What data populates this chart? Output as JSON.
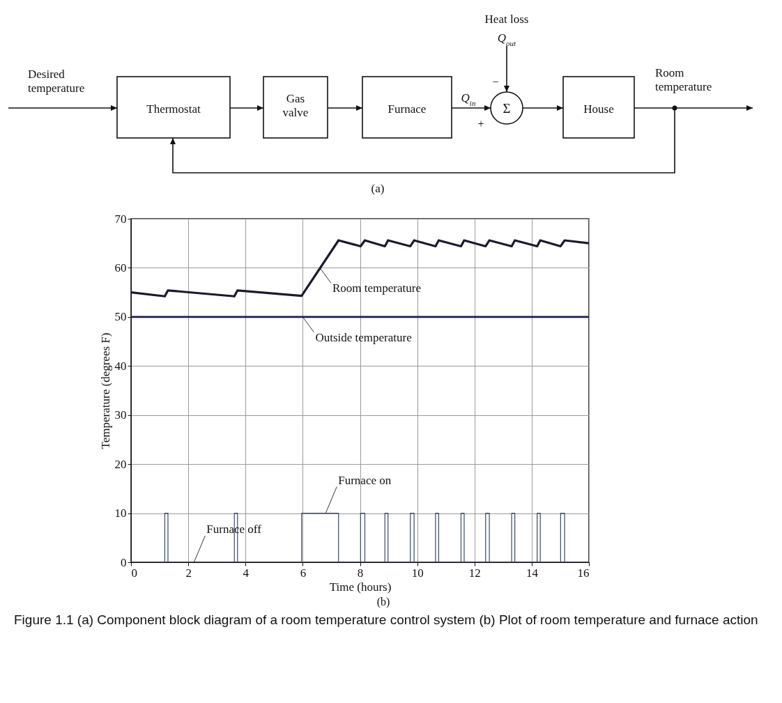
{
  "chart_data": [
    {
      "type": "other",
      "annotations": [
        "Desired temperature",
        "Thermostat",
        "Gas valve",
        "Furnace",
        "Q$_{in}$",
        "+",
        "Σ",
        "−",
        "Heat loss",
        "Q$_{out}$",
        "House",
        "Room temperature",
        "(a)"
      ]
    },
    {
      "type": "line",
      "xlabel": "Time (hours)",
      "ylabel": "Temperature (degrees F)",
      "xlim": [
        0,
        16
      ],
      "xticks": [
        0,
        2,
        4,
        6,
        8,
        10,
        12,
        14,
        16
      ],
      "ylim": [
        0,
        70
      ],
      "yticks": [
        0,
        10,
        20,
        30,
        40,
        50,
        60,
        70
      ],
      "grid": true,
      "series": [
        {
          "color": "#1a1a2e",
          "x": [
            0,
            1.18,
            1.29,
            3.61,
            3.72,
            5.96,
            7.25,
            8.02,
            8.17,
            8.87,
            8.98,
            9.76,
            9.89,
            10.64,
            10.75,
            11.53,
            11.64,
            12.39,
            12.52,
            13.3,
            13.41,
            14.19,
            14.3,
            15.01,
            15.15,
            16
          ],
          "values": [
            55,
            54.2,
            55.4,
            54.2,
            55.4,
            54.3,
            65.6,
            64.4,
            65.6,
            64.4,
            65.6,
            64.4,
            65.6,
            64.4,
            65.6,
            64.4,
            65.6,
            64.4,
            65.6,
            64.4,
            65.6,
            64.4,
            65.6,
            64.4,
            65.6,
            65
          ]
        },
        {
          "color": "#1c1c50",
          "x": [
            0,
            16
          ],
          "values": [
            50,
            50
          ]
        },
        {
          "type": "step",
          "color": "#3a4a6a",
          "x": [
            0,
            1.18,
            1.29,
            3.61,
            3.72,
            5.96,
            7.25,
            8.02,
            8.17,
            8.87,
            8.98,
            9.76,
            9.89,
            10.64,
            10.75,
            11.53,
            11.64,
            12.39,
            12.52,
            13.3,
            13.41,
            14.19,
            14.3,
            15.01,
            15.15,
            16
          ],
          "values": [
            0,
            10,
            0,
            10,
            0,
            10,
            0,
            10,
            0,
            10,
            0,
            10,
            0,
            10,
            0,
            10,
            0,
            10,
            0,
            10,
            0,
            10,
            0,
            10,
            0,
            0
          ]
        }
      ],
      "annotations": [
        {
          "text": "Room temperature",
          "x": 6.6,
          "y": 60
        },
        {
          "text": "Outside temperature",
          "x": 6,
          "y": 50
        },
        {
          "text": "Furnace off",
          "x": 2.2,
          "y": 0
        },
        {
          "text": "Furnace on",
          "x": 6.8,
          "y": 10
        },
        "(b)",
        "Figure 1.1 (a) Component block diagram of a room temperature control system (b) Plot of room temperature and furnace action"
      ]
    }
  ]
}
